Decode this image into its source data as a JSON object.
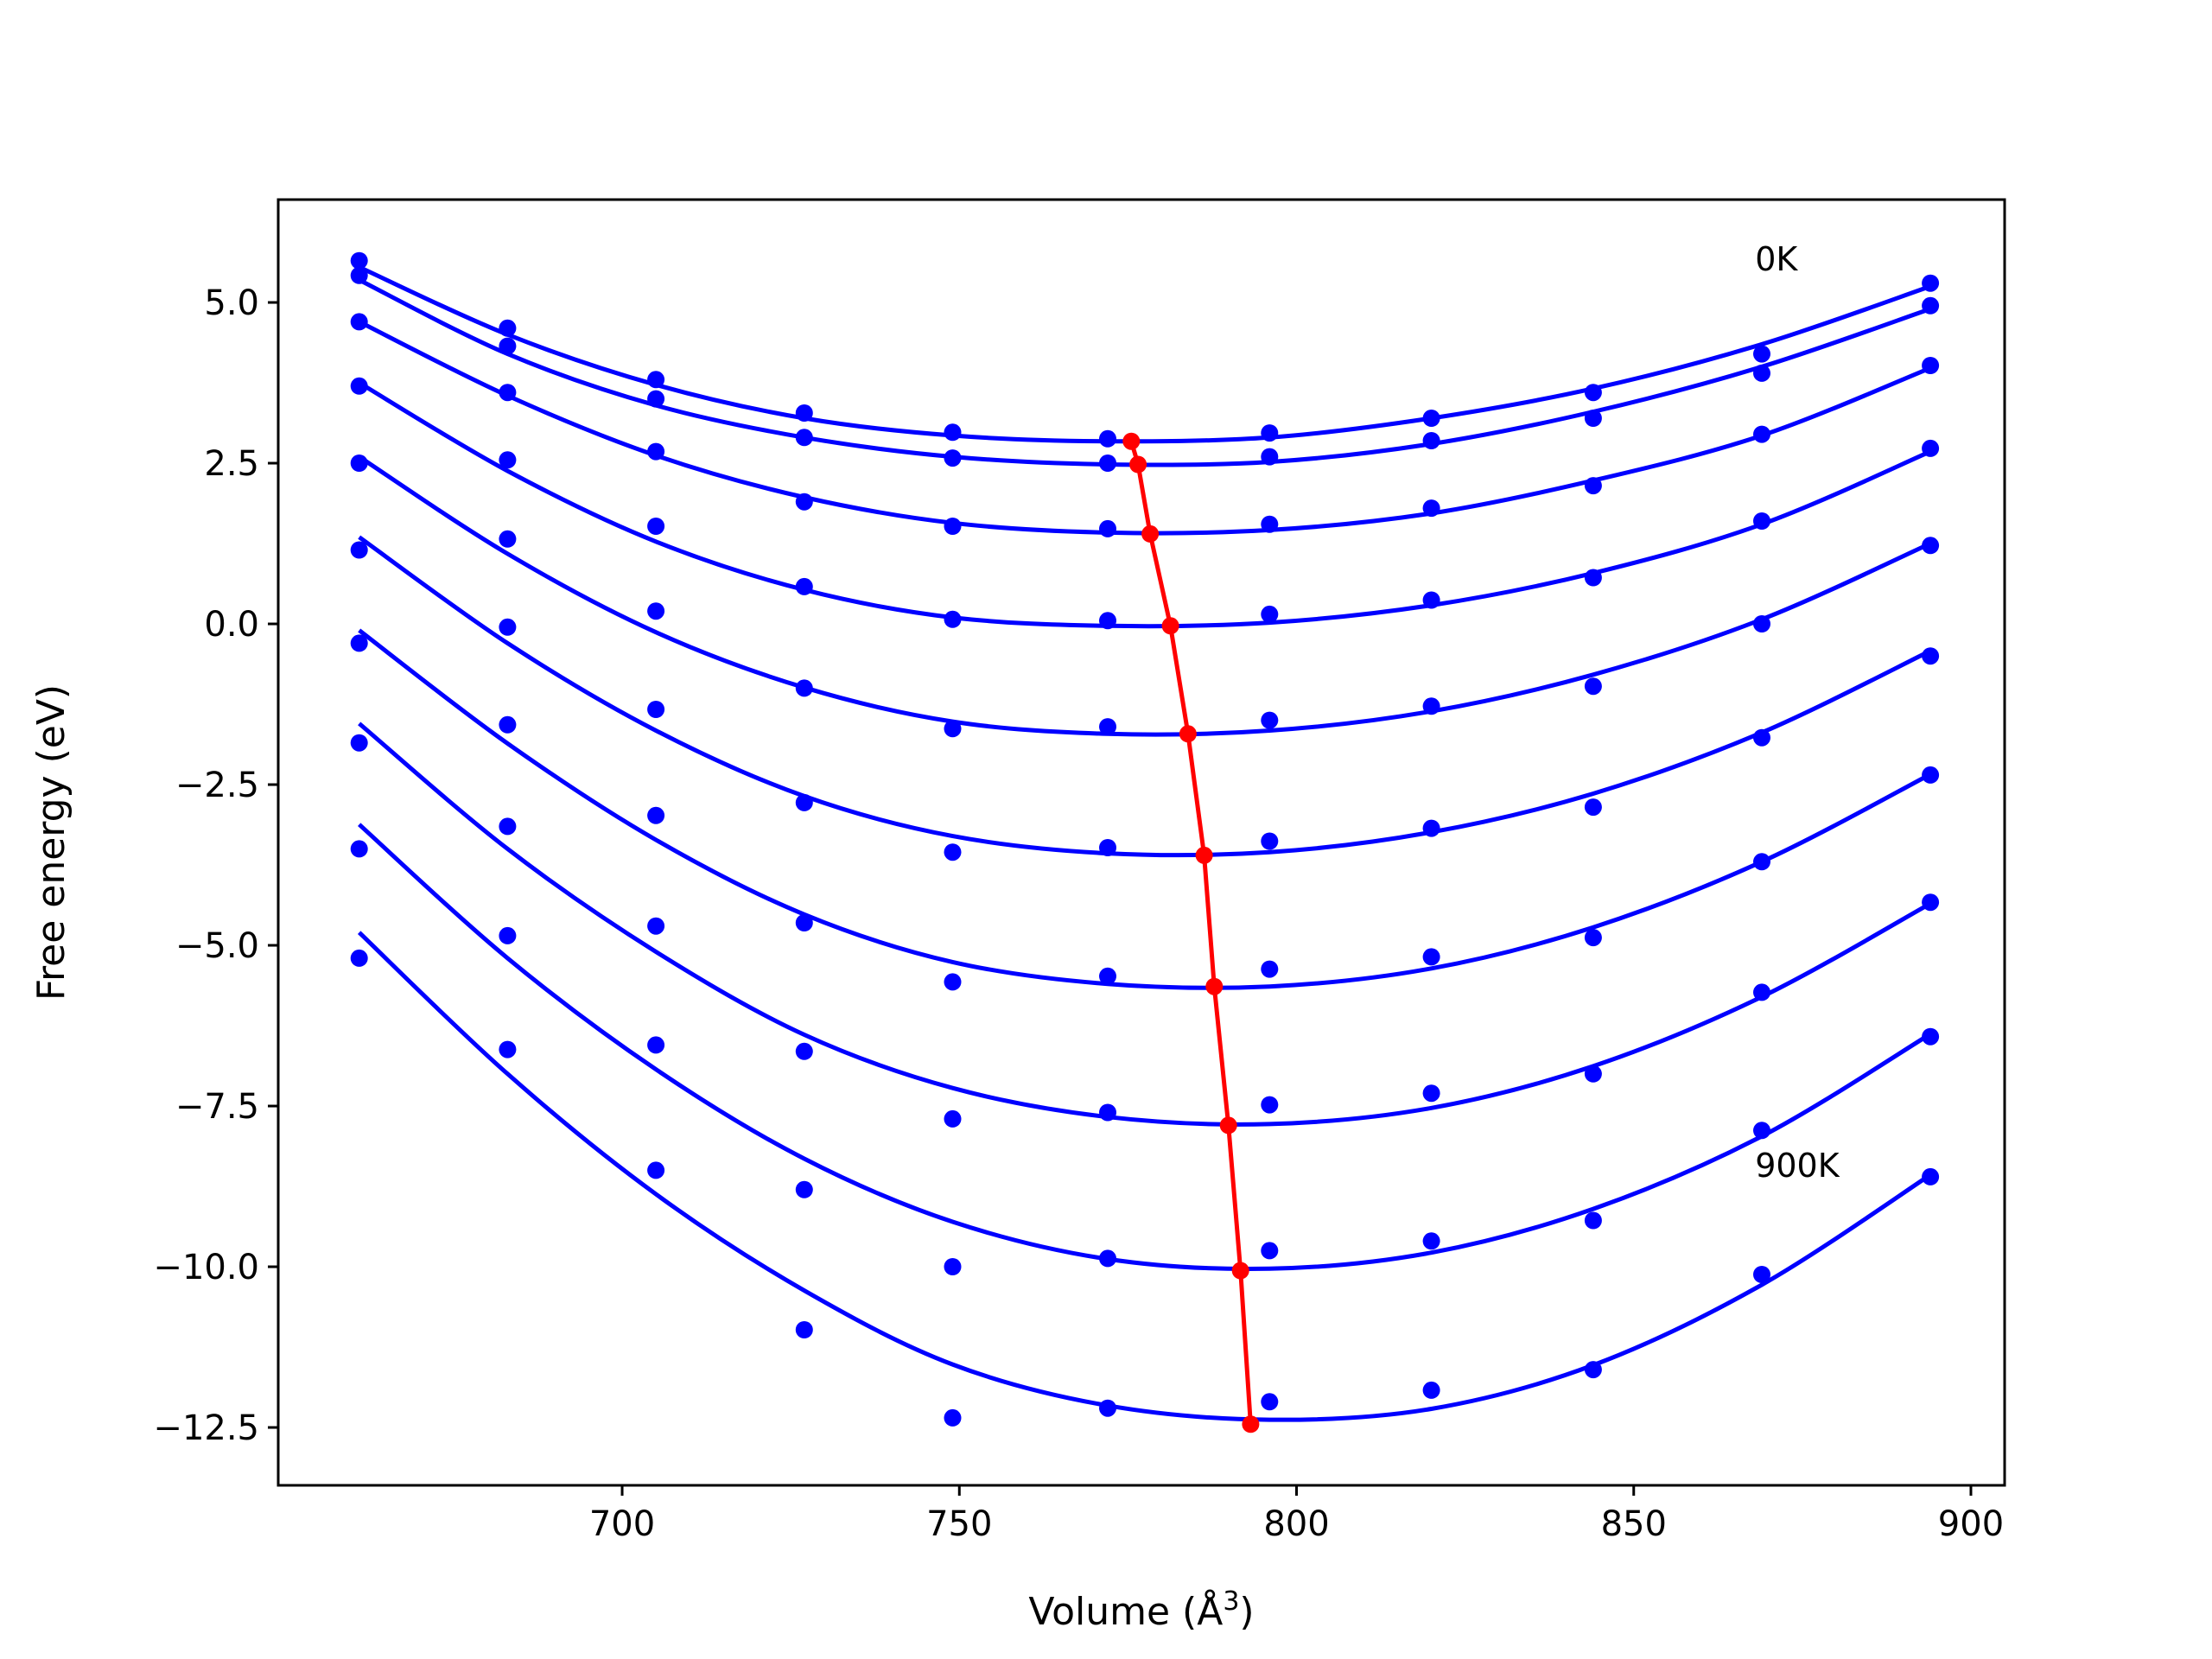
{
  "chart_data": {
    "type": "scatter",
    "title": "",
    "xlabel": "Volume (Å",
    "xlabel_sup": "3",
    "xlabel_end": ")",
    "ylabel": "Free energy (eV)",
    "xlim": [
      649,
      905
    ],
    "ylim": [
      -13.4,
      6.6
    ],
    "x_ticks": [
      700,
      750,
      800,
      850,
      900
    ],
    "y_ticks": [
      5.0,
      2.5,
      0.0,
      -2.5,
      -5.0,
      -7.5,
      -10.0,
      -12.5
    ],
    "grid": false,
    "annotations": [
      {
        "text": "0K",
        "x": 868,
        "y": 5.5
      },
      {
        "text": "900K",
        "x": 868,
        "y": -8.6
      }
    ],
    "colors": {
      "data": "#0000ff",
      "minima": "#ff0000"
    },
    "x": [
      661,
      683,
      705,
      727,
      749,
      772,
      796,
      820,
      844,
      869,
      894
    ],
    "series": [
      {
        "points": [
          5.65,
          4.6,
          3.8,
          3.28,
          2.98,
          2.88,
          2.97,
          3.2,
          3.6,
          4.2,
          5.3
        ],
        "fit": [
          5.55,
          4.5,
          3.72,
          3.2,
          2.93,
          2.84,
          2.9,
          3.2,
          3.66,
          4.35,
          5.25
        ]
      },
      {
        "points": [
          5.42,
          4.32,
          3.5,
          2.9,
          2.58,
          2.5,
          2.6,
          2.85,
          3.2,
          3.9,
          4.95
        ],
        "fit": [
          5.35,
          4.2,
          3.4,
          2.9,
          2.6,
          2.48,
          2.52,
          2.8,
          3.3,
          4.0,
          4.9
        ]
      },
      {
        "points": [
          4.7,
          3.6,
          2.68,
          1.9,
          1.52,
          1.48,
          1.55,
          1.8,
          2.15,
          2.95,
          4.02
        ],
        "fit": [
          4.7,
          3.55,
          2.62,
          1.97,
          1.57,
          1.42,
          1.46,
          1.72,
          2.23,
          2.93,
          3.98
        ]
      },
      {
        "points": [
          3.7,
          2.55,
          1.52,
          0.58,
          0.07,
          0.05,
          0.15,
          0.37,
          0.72,
          1.6,
          2.73
        ],
        "fit": [
          3.75,
          2.38,
          1.28,
          0.53,
          0.1,
          -0.03,
          0.02,
          0.29,
          0.79,
          1.55,
          2.68
        ]
      },
      {
        "points": [
          2.5,
          1.32,
          0.2,
          -1.0,
          -1.63,
          -1.6,
          -1.5,
          -1.28,
          -0.97,
          0.0,
          1.22
        ],
        "fit": [
          2.6,
          1.09,
          -0.13,
          -0.99,
          -1.52,
          -1.71,
          -1.66,
          -1.36,
          -0.79,
          0.07,
          1.25
        ]
      },
      {
        "points": [
          1.15,
          -0.05,
          -1.33,
          -2.78,
          -3.55,
          -3.48,
          -3.38,
          -3.18,
          -2.85,
          -1.77,
          -0.5
        ],
        "fit": [
          1.35,
          -0.3,
          -1.66,
          -2.68,
          -3.3,
          -3.57,
          -3.55,
          -3.24,
          -2.64,
          -1.69,
          -0.42
        ]
      },
      {
        "points": [
          -0.3,
          -1.57,
          -2.98,
          -4.65,
          -5.57,
          -5.48,
          -5.37,
          -5.18,
          -4.88,
          -3.7,
          -2.35
        ],
        "fit": [
          -0.1,
          -1.86,
          -3.36,
          -4.52,
          -5.26,
          -5.6,
          -5.64,
          -5.36,
          -4.72,
          -3.7,
          -2.34
        ]
      },
      {
        "points": [
          -1.85,
          -3.15,
          -4.7,
          -6.65,
          -7.7,
          -7.6,
          -7.48,
          -7.3,
          -7.0,
          -5.73,
          -4.33
        ],
        "fit": [
          -1.55,
          -3.5,
          -5.1,
          -6.39,
          -7.22,
          -7.67,
          -7.78,
          -7.53,
          -6.88,
          -5.8,
          -4.35
        ]
      },
      {
        "points": [
          -3.5,
          -4.85,
          -6.55,
          -8.8,
          -10.0,
          -9.87,
          -9.75,
          -9.6,
          -9.28,
          -7.88,
          -6.42
        ],
        "fit": [
          -3.12,
          -5.2,
          -6.93,
          -8.32,
          -9.3,
          -9.88,
          -10.03,
          -9.78,
          -9.1,
          -7.97,
          -6.38
        ]
      },
      {
        "points": [
          -5.2,
          -6.62,
          -8.5,
          -10.98,
          -12.35,
          -12.2,
          -12.1,
          -11.92,
          -11.6,
          -10.12,
          -8.6
        ],
        "fit": [
          -4.8,
          -7.0,
          -8.87,
          -10.37,
          -11.52,
          -12.16,
          -12.38,
          -12.21,
          -11.53,
          -10.28,
          -8.57
        ]
      }
    ],
    "minima": {
      "x": [
        775.5,
        776.5,
        778.3,
        781.3,
        783.9,
        786.3,
        787.8,
        789.9,
        791.7,
        793.2
      ],
      "y": [
        2.84,
        2.48,
        1.4,
        -0.03,
        -1.71,
        -3.6,
        -5.64,
        -7.8,
        -10.06,
        -12.45
      ]
    }
  }
}
